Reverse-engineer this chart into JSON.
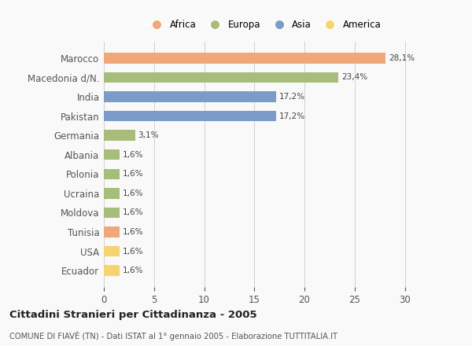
{
  "categories": [
    "Ecuador",
    "USA",
    "Tunisia",
    "Moldova",
    "Ucraina",
    "Polonia",
    "Albania",
    "Germania",
    "Pakistan",
    "India",
    "Macedonia d/N.",
    "Marocco"
  ],
  "values": [
    1.6,
    1.6,
    1.6,
    1.6,
    1.6,
    1.6,
    1.6,
    3.1,
    17.2,
    17.2,
    23.4,
    28.1
  ],
  "labels": [
    "1,6%",
    "1,6%",
    "1,6%",
    "1,6%",
    "1,6%",
    "1,6%",
    "1,6%",
    "3,1%",
    "17,2%",
    "17,2%",
    "23,4%",
    "28,1%"
  ],
  "colors": [
    "#f5d36e",
    "#f5d36e",
    "#f0a87a",
    "#a8bc7b",
    "#a8bc7b",
    "#a8bc7b",
    "#a8bc7b",
    "#a8bc7b",
    "#7b9bc8",
    "#7b9bc8",
    "#a8bc7b",
    "#f0a87a"
  ],
  "legend": [
    {
      "label": "Africa",
      "color": "#f0a87a"
    },
    {
      "label": "Europa",
      "color": "#a8bc7b"
    },
    {
      "label": "Asia",
      "color": "#7b9bc8"
    },
    {
      "label": "America",
      "color": "#f5d36e"
    }
  ],
  "xlim": [
    0,
    32
  ],
  "xticks": [
    0,
    5,
    10,
    15,
    20,
    25,
    30
  ],
  "title_main": "Cittadini Stranieri per Cittadinanza - 2005",
  "title_sub": "COMUNE DI FIAVÈ (TN) - Dati ISTAT al 1° gennaio 2005 - Elaborazione TUTTITALIA.IT",
  "bg_color": "#f9f9f9",
  "bar_height": 0.55
}
